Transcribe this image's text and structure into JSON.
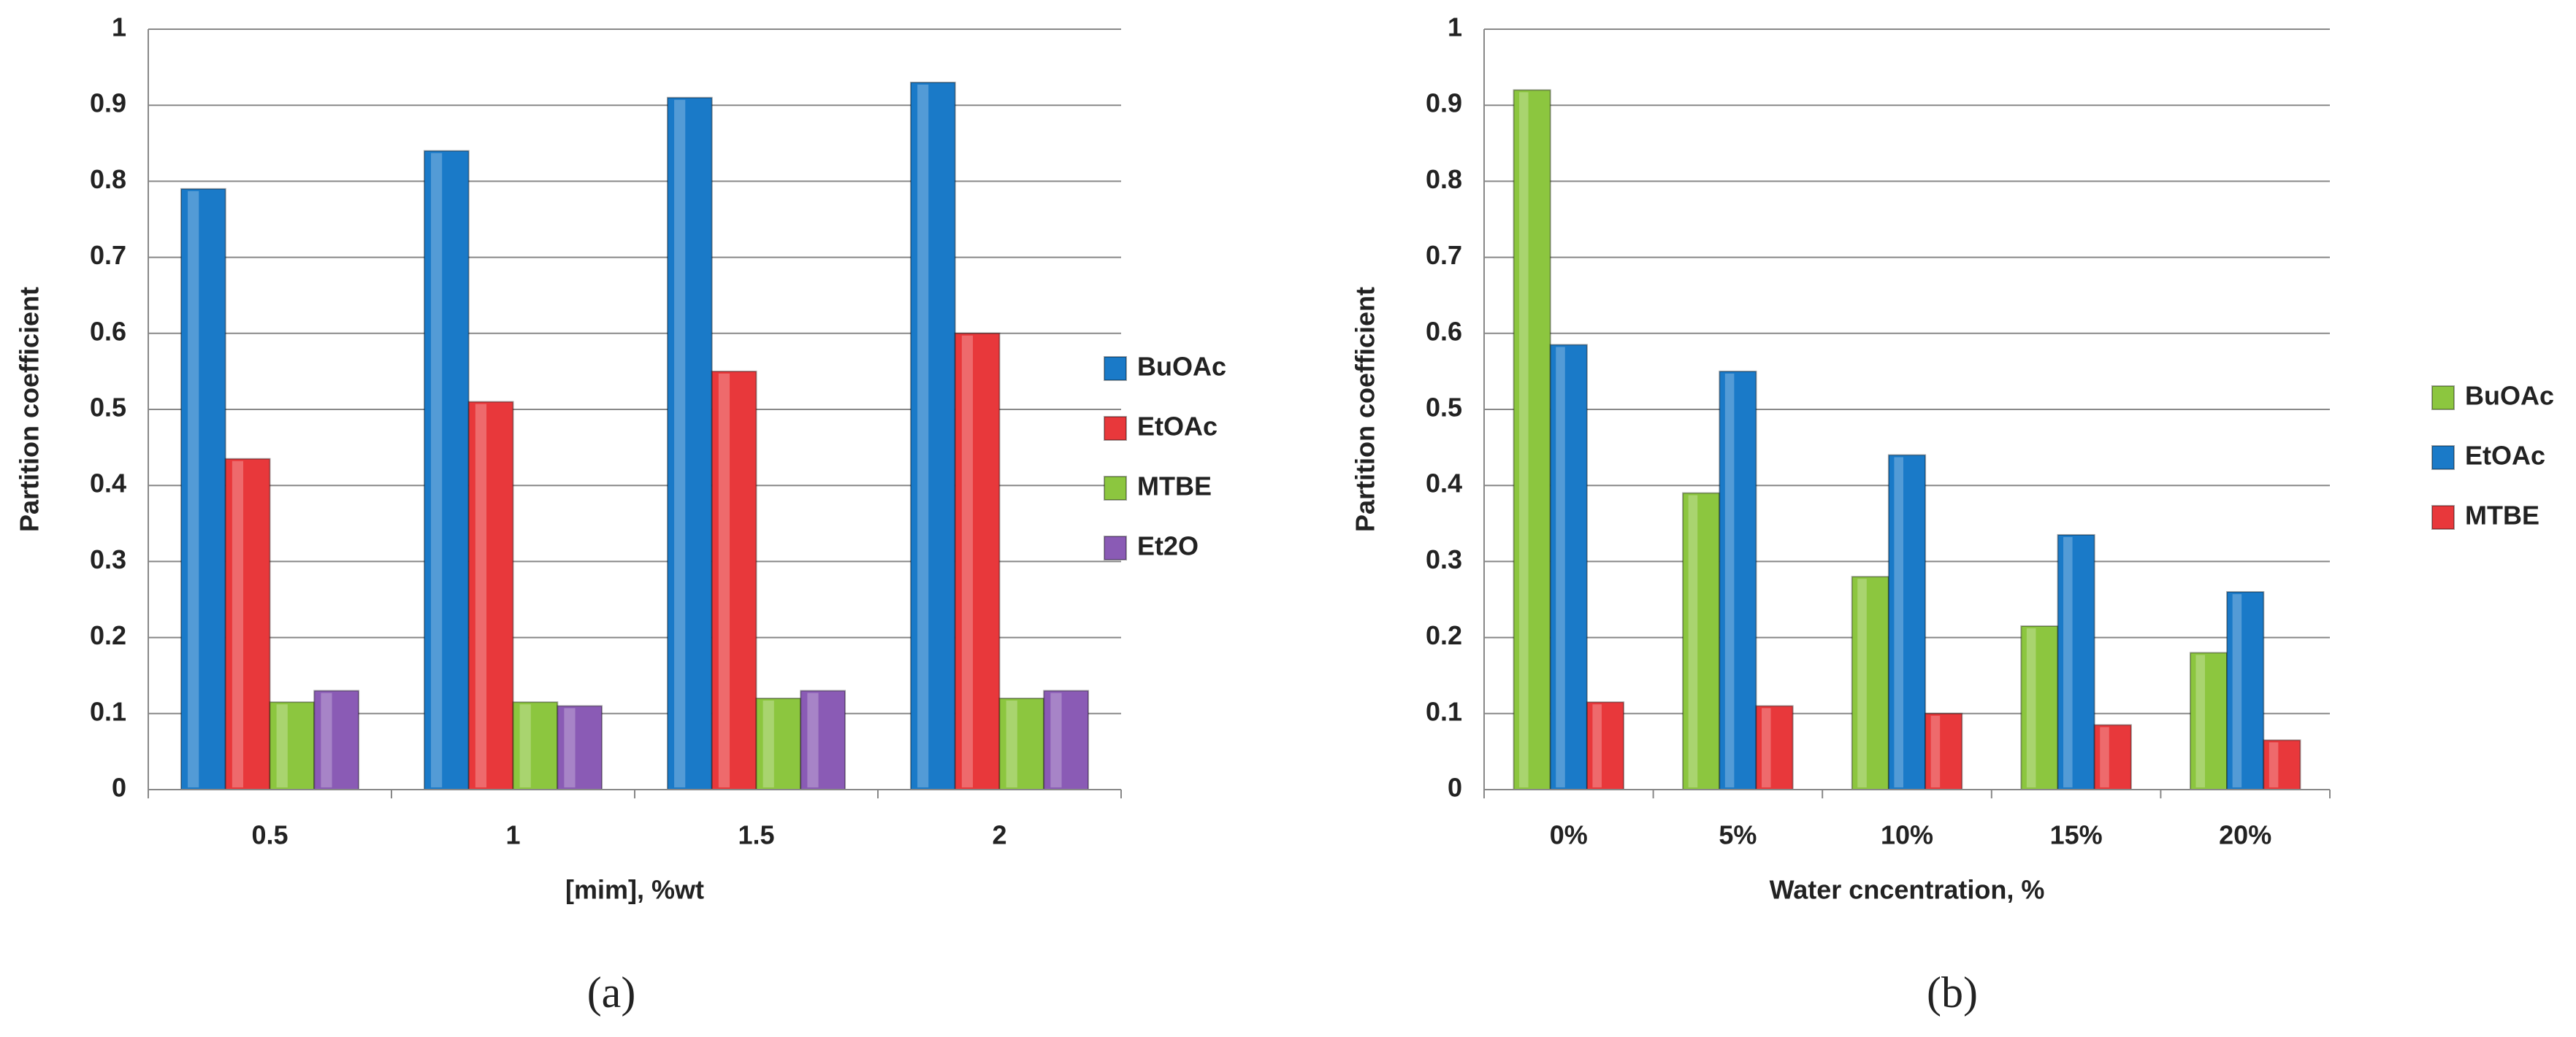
{
  "chart_data": [
    {
      "type": "bar",
      "y_label": "Partition coefficient",
      "x_label": "[mim], %wt",
      "caption": "(a)",
      "categories": [
        "0.5",
        "1",
        "1.5",
        "2"
      ],
      "series": [
        {
          "name": "BuOAc",
          "color": "#1a7ac8",
          "values": [
            0.79,
            0.84,
            0.91,
            0.93
          ]
        },
        {
          "name": "EtOAc",
          "color": "#e8383b",
          "values": [
            0.435,
            0.51,
            0.55,
            0.6
          ]
        },
        {
          "name": "MTBE",
          "color": "#8cc63f",
          "values": [
            0.115,
            0.115,
            0.12,
            0.12
          ]
        },
        {
          "name": "Et2O",
          "color": "#8a5bb5",
          "values": [
            0.13,
            0.11,
            0.13,
            0.13
          ]
        }
      ],
      "ylim": [
        0,
        1
      ],
      "yticks": [
        0,
        0.1,
        0.2,
        0.3,
        0.4,
        0.5,
        0.6,
        0.7,
        0.8,
        0.9,
        1
      ],
      "grid": true,
      "legend": "right"
    },
    {
      "type": "bar",
      "y_label": "Partition coefficient",
      "x_label": "Water cncentration,  %",
      "caption": "(b)",
      "categories": [
        "0%",
        "5%",
        "10%",
        "15%",
        "20%"
      ],
      "series": [
        {
          "name": "BuOAc",
          "color": "#8cc63f",
          "values": [
            0.92,
            0.39,
            0.28,
            0.215,
            0.18
          ]
        },
        {
          "name": "EtOAc",
          "color": "#1a7ac8",
          "values": [
            0.585,
            0.55,
            0.44,
            0.335,
            0.26
          ]
        },
        {
          "name": "MTBE",
          "color": "#e8383b",
          "values": [
            0.115,
            0.11,
            0.1,
            0.085,
            0.065
          ]
        }
      ],
      "ylim": [
        0,
        1
      ],
      "yticks": [
        0,
        0.1,
        0.2,
        0.3,
        0.4,
        0.5,
        0.6,
        0.7,
        0.8,
        0.9,
        1
      ],
      "grid": true,
      "legend": "right"
    }
  ]
}
